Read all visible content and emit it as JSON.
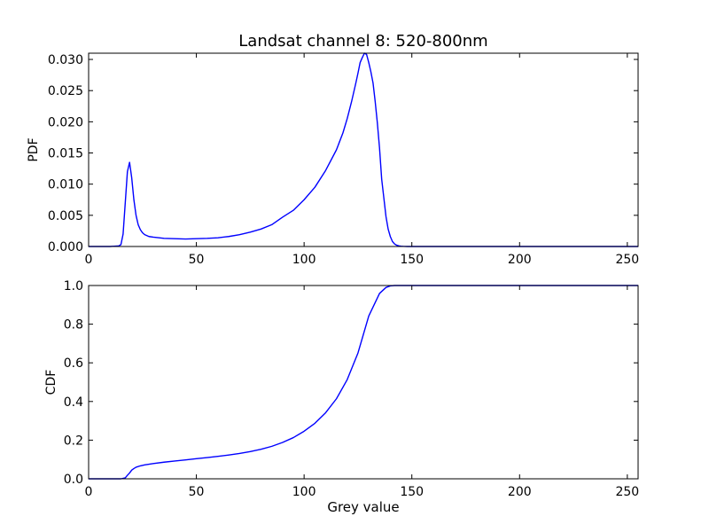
{
  "figure": {
    "title": "Landsat channel 8: 520-800nm"
  },
  "colors": {
    "line": "#0000ff",
    "axes": "#000000",
    "background": "#ffffff"
  },
  "chart_data": [
    {
      "type": "line",
      "name": "pdf-panel",
      "title": "Landsat channel 8: 520-800nm",
      "xlabel": "",
      "ylabel": "PDF",
      "xlim": [
        0,
        255
      ],
      "ylim": [
        0,
        0.031
      ],
      "xticks": [
        0,
        50,
        100,
        150,
        200,
        250
      ],
      "xtick_labels": [
        "0",
        "50",
        "100",
        "150",
        "200",
        "250"
      ],
      "yticks": [
        0,
        0.005,
        0.01,
        0.015,
        0.02,
        0.025,
        0.03
      ],
      "ytick_labels": [
        "0.000",
        "0.005",
        "0.010",
        "0.015",
        "0.020",
        "0.025",
        "0.030"
      ],
      "grid": false,
      "series": [
        {
          "color": "#0000ff",
          "x": [
            0,
            10,
            14,
            15,
            16,
            17,
            18,
            19,
            20,
            21,
            22,
            23,
            24,
            25,
            26,
            28,
            30,
            35,
            40,
            45,
            50,
            55,
            60,
            65,
            70,
            75,
            80,
            85,
            90,
            95,
            100,
            105,
            110,
            115,
            118,
            120,
            122,
            124,
            125,
            126,
            127,
            128,
            129,
            130,
            131,
            132,
            133,
            134,
            135,
            136,
            137,
            138,
            139,
            140,
            141,
            142,
            143,
            144,
            145,
            146,
            148,
            150,
            160,
            200,
            255
          ],
          "y": [
            0.0,
            0.0,
            0.0001,
            0.0003,
            0.002,
            0.007,
            0.012,
            0.0135,
            0.011,
            0.0075,
            0.005,
            0.0035,
            0.0027,
            0.0022,
            0.0019,
            0.0016,
            0.0015,
            0.0013,
            0.00125,
            0.0012,
            0.00125,
            0.0013,
            0.0014,
            0.0016,
            0.0019,
            0.0023,
            0.0028,
            0.0035,
            0.0047,
            0.0058,
            0.0075,
            0.0095,
            0.0122,
            0.0155,
            0.0182,
            0.0205,
            0.0232,
            0.0262,
            0.0278,
            0.0295,
            0.0303,
            0.031,
            0.0308,
            0.0295,
            0.028,
            0.0262,
            0.0232,
            0.0198,
            0.0158,
            0.0108,
            0.0078,
            0.0048,
            0.0028,
            0.0016,
            0.0008,
            0.0004,
            0.0002,
            0.0001,
            5e-05,
            2e-05,
            0.0,
            0.0,
            0.0,
            0.0,
            0.0
          ]
        }
      ]
    },
    {
      "type": "line",
      "name": "cdf-panel",
      "title": "",
      "xlabel": "Grey value",
      "ylabel": "CDF",
      "xlim": [
        0,
        255
      ],
      "ylim": [
        0,
        1.0
      ],
      "xticks": [
        0,
        50,
        100,
        150,
        200,
        250
      ],
      "xtick_labels": [
        "0",
        "50",
        "100",
        "150",
        "200",
        "250"
      ],
      "yticks": [
        0,
        0.2,
        0.4,
        0.6,
        0.8,
        1.0
      ],
      "ytick_labels": [
        "0.0",
        "0.2",
        "0.4",
        "0.6",
        "0.8",
        "1.0"
      ],
      "grid": false,
      "series": [
        {
          "color": "#0000ff",
          "x": [
            0,
            15,
            17,
            18,
            19,
            20,
            21,
            22,
            24,
            26,
            30,
            35,
            40,
            45,
            50,
            55,
            60,
            65,
            70,
            75,
            80,
            85,
            90,
            95,
            100,
            105,
            110,
            115,
            120,
            125,
            130,
            135,
            138,
            140,
            142,
            150,
            200,
            255
          ],
          "y": [
            0.0,
            0.0,
            0.005,
            0.018,
            0.03,
            0.045,
            0.053,
            0.06,
            0.067,
            0.072,
            0.079,
            0.086,
            0.092,
            0.098,
            0.104,
            0.11,
            0.116,
            0.123,
            0.131,
            0.141,
            0.153,
            0.168,
            0.188,
            0.213,
            0.246,
            0.287,
            0.342,
            0.414,
            0.513,
            0.651,
            0.842,
            0.959,
            0.99,
            0.998,
            1.0,
            1.0,
            1.0,
            1.0
          ]
        }
      ]
    }
  ]
}
